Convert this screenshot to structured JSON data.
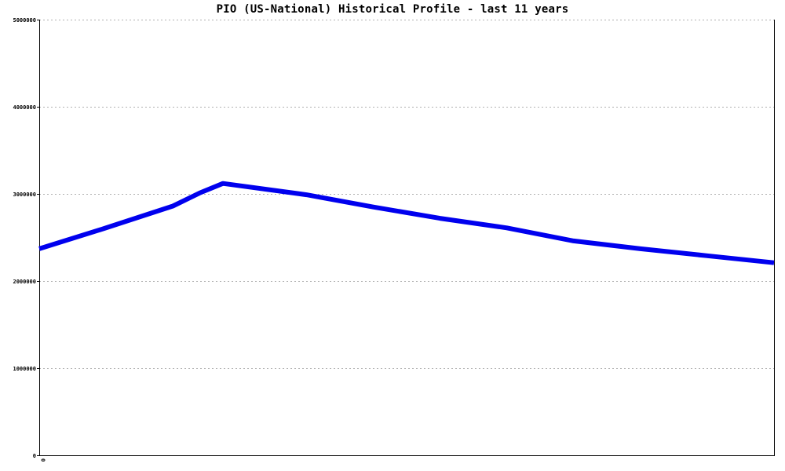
{
  "chart_data": {
    "type": "line",
    "title": "PIO (US-National) Historical Profile - last 11 years",
    "xlabel": "",
    "ylabel": "",
    "x_tick_labels": [
      "0"
    ],
    "y_tick_labels": [
      "0",
      "1000000",
      "2000000",
      "3000000",
      "4000000",
      "5000000"
    ],
    "ylim": [
      0,
      5000000
    ],
    "xlim": [
      0,
      11
    ],
    "grid": true,
    "series": [
      {
        "color": "#0000ee",
        "x": [
          0,
          1,
          2,
          2.4,
          2.75,
          4,
          5,
          6,
          7,
          8,
          9,
          10,
          11
        ],
        "values": [
          2370000,
          2610000,
          2860000,
          3010000,
          3120000,
          2990000,
          2850000,
          2720000,
          2610000,
          2460000,
          2370000,
          2290000,
          2210000
        ]
      }
    ]
  }
}
